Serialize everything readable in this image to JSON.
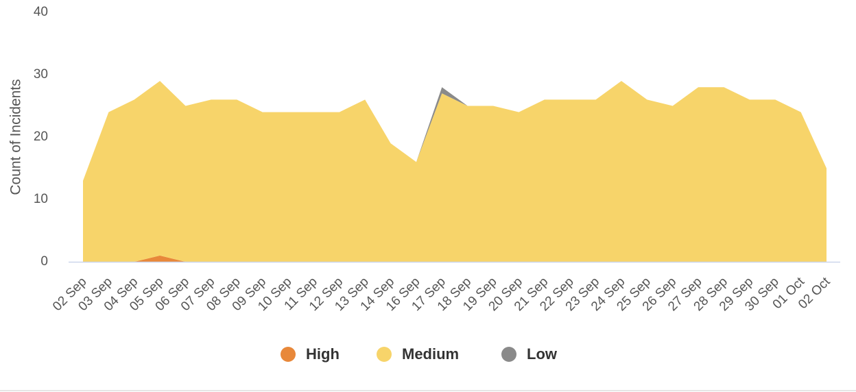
{
  "chart_data": {
    "type": "area",
    "stacked": true,
    "y_label": "Count of Incidents",
    "categories": [
      "02 Sep",
      "03 Sep",
      "04 Sep",
      "05 Sep",
      "06 Sep",
      "07 Sep",
      "08 Sep",
      "09 Sep",
      "10 Sep",
      "11 Sep",
      "12 Sep",
      "13 Sep",
      "14 Sep",
      "16 Sep",
      "17 Sep",
      "18 Sep",
      "19 Sep",
      "20 Sep",
      "21 Sep",
      "22 Sep",
      "23 Sep",
      "24 Sep",
      "25 Sep",
      "26 Sep",
      "27 Sep",
      "28 Sep",
      "29 Sep",
      "30 Sep",
      "01 Oct",
      "02 Oct"
    ],
    "series": [
      {
        "name": "High",
        "color": "#e8883a",
        "values": [
          0,
          0,
          0,
          1,
          0,
          0,
          0,
          0,
          0,
          0,
          0,
          0,
          0,
          0,
          0,
          0,
          0,
          0,
          0,
          0,
          0,
          0,
          0,
          0,
          0,
          0,
          0,
          0,
          0,
          0
        ]
      },
      {
        "name": "Medium",
        "color": "#f7d46a",
        "values": [
          13,
          24,
          26,
          28,
          25,
          26,
          26,
          24,
          24,
          24,
          24,
          26,
          19,
          16,
          27,
          25,
          25,
          24,
          26,
          26,
          26,
          29,
          26,
          25,
          28,
          28,
          26,
          26,
          24,
          15
        ]
      },
      {
        "name": "Low",
        "color": "#8a8a8a",
        "values": [
          0,
          0,
          0,
          0,
          0,
          0,
          0,
          0,
          0,
          0,
          0,
          0,
          0,
          0,
          1,
          0,
          0,
          0,
          0,
          0,
          0,
          0,
          0,
          0,
          0,
          0,
          0,
          0,
          0,
          0
        ]
      }
    ],
    "ylim": [
      0,
      40
    ],
    "yticks": [
      0,
      10,
      20,
      30,
      40
    ]
  }
}
